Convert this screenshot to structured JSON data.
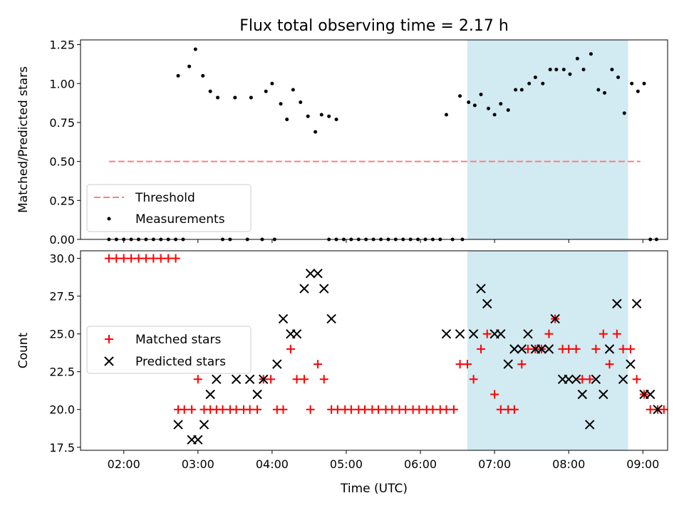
{
  "title": "Flux total observing time = 2.17 h",
  "colors": {
    "threshold": "#ff7f7f",
    "measurements": "#000000",
    "matched": "#ff0000",
    "predicted": "#000000",
    "observing_window": "#add8e6"
  },
  "chart_data": [
    {
      "type": "scatter",
      "panel": "top",
      "ylabel": "Matched/Predicted stars",
      "ylim": [
        0,
        1.28
      ],
      "yticks": [
        "0.00",
        "0.25",
        "0.50",
        "0.75",
        "1.00",
        "1.25"
      ],
      "xlim": [
        "01:25",
        "09:20"
      ],
      "grid": false,
      "legend_position": "lower-left",
      "shaded_window": [
        "06:38",
        "08:48"
      ],
      "threshold": {
        "name": "Threshold",
        "y": 0.5,
        "x": [
          "01:48",
          "08:58"
        ],
        "style": "dashed"
      },
      "series": [
        {
          "name": "Measurements",
          "points": [
            [
              "01:48",
              0
            ],
            [
              "01:54",
              0
            ],
            [
              "02:00",
              0
            ],
            [
              "02:06",
              0
            ],
            [
              "02:12",
              0
            ],
            [
              "02:18",
              0
            ],
            [
              "02:24",
              0
            ],
            [
              "02:30",
              0
            ],
            [
              "02:36",
              0
            ],
            [
              "02:42",
              0
            ],
            [
              "02:44",
              1.05
            ],
            [
              "02:48",
              0
            ],
            [
              "02:53",
              1.11
            ],
            [
              "02:58",
              1.22
            ],
            [
              "03:04",
              1.05
            ],
            [
              "03:10",
              0.95
            ],
            [
              "03:16",
              0.91
            ],
            [
              "03:20",
              0
            ],
            [
              "03:26",
              0
            ],
            [
              "03:30",
              0.91
            ],
            [
              "03:40",
              0
            ],
            [
              "03:43",
              0.91
            ],
            [
              "03:52",
              0
            ],
            [
              "03:55",
              0.95
            ],
            [
              "04:00",
              1.0
            ],
            [
              "04:02",
              0
            ],
            [
              "04:07",
              0.87
            ],
            [
              "04:12",
              0.77
            ],
            [
              "04:17",
              0.96
            ],
            [
              "04:23",
              0.88
            ],
            [
              "04:29",
              0.79
            ],
            [
              "04:35",
              0.69
            ],
            [
              "04:40",
              0.8
            ],
            [
              "04:46",
              0.79
            ],
            [
              "04:52",
              0.77
            ],
            [
              "04:46",
              0
            ],
            [
              "04:52",
              0
            ],
            [
              "04:58",
              0
            ],
            [
              "05:04",
              0
            ],
            [
              "05:10",
              0
            ],
            [
              "05:16",
              0
            ],
            [
              "05:22",
              0
            ],
            [
              "05:28",
              0
            ],
            [
              "05:34",
              0
            ],
            [
              "05:40",
              0
            ],
            [
              "05:46",
              0
            ],
            [
              "05:52",
              0
            ],
            [
              "05:58",
              0
            ],
            [
              "06:04",
              0
            ],
            [
              "06:10",
              0
            ],
            [
              "06:16",
              0
            ],
            [
              "06:21",
              0.8
            ],
            [
              "06:26",
              0
            ],
            [
              "06:32",
              0.92
            ],
            [
              "06:34",
              0
            ],
            [
              "06:39",
              0.88
            ],
            [
              "06:44",
              0.86
            ],
            [
              "06:49",
              0.93
            ],
            [
              "06:55",
              0.84
            ],
            [
              "07:00",
              0.8
            ],
            [
              "07:05",
              0.87
            ],
            [
              "07:11",
              0.83
            ],
            [
              "07:17",
              0.96
            ],
            [
              "07:22",
              0.96
            ],
            [
              "07:28",
              1.0
            ],
            [
              "07:33",
              1.04
            ],
            [
              "07:39",
              1.0
            ],
            [
              "07:45",
              1.09
            ],
            [
              "07:50",
              1.09
            ],
            [
              "07:56",
              1.09
            ],
            [
              "08:01",
              1.06
            ],
            [
              "08:07",
              1.16
            ],
            [
              "08:12",
              1.09
            ],
            [
              "08:18",
              1.19
            ],
            [
              "08:24",
              0.96
            ],
            [
              "08:29",
              0.94
            ],
            [
              "08:35",
              1.09
            ],
            [
              "08:40",
              1.04
            ],
            [
              "08:45",
              0.81
            ],
            [
              "08:51",
              1.0
            ],
            [
              "08:56",
              0.95
            ],
            [
              "09:01",
              1.0
            ],
            [
              "09:06",
              0
            ],
            [
              "09:11",
              0
            ]
          ]
        }
      ]
    },
    {
      "type": "scatter",
      "panel": "bottom",
      "xlabel": "Time (UTC)",
      "ylabel": "Count",
      "ylim": [
        17.3,
        30.5
      ],
      "yticks": [
        "17.5",
        "20.0",
        "22.5",
        "25.0",
        "27.5",
        "30.0"
      ],
      "xticks": [
        "02:00",
        "03:00",
        "04:00",
        "05:00",
        "06:00",
        "07:00",
        "08:00",
        "09:00"
      ],
      "xlim": [
        "01:25",
        "09:20"
      ],
      "grid": false,
      "legend_position": "center-left",
      "shaded_window": [
        "06:38",
        "08:48"
      ],
      "series": [
        {
          "name": "Matched stars",
          "marker": "plus",
          "points": [
            [
              "01:48",
              30
            ],
            [
              "01:54",
              30
            ],
            [
              "02:00",
              30
            ],
            [
              "02:06",
              30
            ],
            [
              "02:12",
              30
            ],
            [
              "02:18",
              30
            ],
            [
              "02:24",
              30
            ],
            [
              "02:30",
              30
            ],
            [
              "02:36",
              30
            ],
            [
              "02:42",
              30
            ],
            [
              "02:44",
              20
            ],
            [
              "02:49",
              20
            ],
            [
              "02:55",
              20
            ],
            [
              "03:00",
              22
            ],
            [
              "03:05",
              20
            ],
            [
              "03:10",
              20
            ],
            [
              "03:15",
              20
            ],
            [
              "03:20",
              20
            ],
            [
              "03:26",
              20
            ],
            [
              "03:31",
              20
            ],
            [
              "03:37",
              20
            ],
            [
              "03:42",
              20
            ],
            [
              "03:48",
              20
            ],
            [
              "03:53",
              22
            ],
            [
              "03:59",
              22
            ],
            [
              "04:04",
              20
            ],
            [
              "04:09",
              20
            ],
            [
              "04:15",
              24
            ],
            [
              "04:20",
              22
            ],
            [
              "04:26",
              22
            ],
            [
              "04:31",
              20
            ],
            [
              "04:37",
              23
            ],
            [
              "04:42",
              22
            ],
            [
              "04:48",
              20
            ],
            [
              "04:53",
              20
            ],
            [
              "04:59",
              20
            ],
            [
              "05:04",
              20
            ],
            [
              "05:10",
              20
            ],
            [
              "05:15",
              20
            ],
            [
              "05:21",
              20
            ],
            [
              "05:26",
              20
            ],
            [
              "05:32",
              20
            ],
            [
              "05:37",
              20
            ],
            [
              "05:43",
              20
            ],
            [
              "05:48",
              20
            ],
            [
              "05:54",
              20
            ],
            [
              "05:59",
              20
            ],
            [
              "06:05",
              20
            ],
            [
              "06:10",
              20
            ],
            [
              "06:16",
              20
            ],
            [
              "06:21",
              20
            ],
            [
              "06:27",
              20
            ],
            [
              "06:32",
              23
            ],
            [
              "06:38",
              23
            ],
            [
              "06:43",
              22
            ],
            [
              "06:49",
              24
            ],
            [
              "06:54",
              25
            ],
            [
              "07:00",
              21
            ],
            [
              "07:05",
              20
            ],
            [
              "07:11",
              20
            ],
            [
              "07:16",
              20
            ],
            [
              "07:22",
              23
            ],
            [
              "07:27",
              24
            ],
            [
              "07:33",
              24
            ],
            [
              "07:38",
              24
            ],
            [
              "07:44",
              25
            ],
            [
              "07:49",
              26
            ],
            [
              "07:55",
              24
            ],
            [
              "08:00",
              24
            ],
            [
              "08:06",
              24
            ],
            [
              "08:11",
              22
            ],
            [
              "08:17",
              22
            ],
            [
              "08:22",
              24
            ],
            [
              "08:28",
              25
            ],
            [
              "08:33",
              23
            ],
            [
              "08:39",
              25
            ],
            [
              "08:44",
              24
            ],
            [
              "08:50",
              24
            ],
            [
              "08:55",
              22
            ],
            [
              "09:01",
              21
            ],
            [
              "09:06",
              20
            ],
            [
              "09:12",
              20
            ],
            [
              "09:17",
              20
            ]
          ]
        },
        {
          "name": "Predicted stars",
          "marker": "x",
          "points": [
            [
              "02:44",
              19
            ],
            [
              "02:55",
              18
            ],
            [
              "03:00",
              18
            ],
            [
              "03:05",
              19
            ],
            [
              "03:10",
              21
            ],
            [
              "03:15",
              22
            ],
            [
              "03:31",
              22
            ],
            [
              "03:42",
              22
            ],
            [
              "03:48",
              21
            ],
            [
              "03:53",
              22
            ],
            [
              "04:04",
              23
            ],
            [
              "04:09",
              26
            ],
            [
              "04:15",
              25
            ],
            [
              "04:20",
              25
            ],
            [
              "04:26",
              28
            ],
            [
              "04:31",
              29
            ],
            [
              "04:37",
              29
            ],
            [
              "04:42",
              28
            ],
            [
              "04:48",
              26
            ],
            [
              "06:21",
              25
            ],
            [
              "06:32",
              25
            ],
            [
              "06:43",
              25
            ],
            [
              "06:49",
              28
            ],
            [
              "06:54",
              27
            ],
            [
              "07:00",
              25
            ],
            [
              "07:05",
              25
            ],
            [
              "07:11",
              23
            ],
            [
              "07:16",
              24
            ],
            [
              "07:22",
              24
            ],
            [
              "07:27",
              25
            ],
            [
              "07:33",
              24
            ],
            [
              "07:38",
              24
            ],
            [
              "07:44",
              24
            ],
            [
              "07:49",
              26
            ],
            [
              "07:55",
              22
            ],
            [
              "08:00",
              22
            ],
            [
              "08:06",
              22
            ],
            [
              "08:11",
              21
            ],
            [
              "08:17",
              19
            ],
            [
              "08:22",
              22
            ],
            [
              "08:28",
              21
            ],
            [
              "08:33",
              24
            ],
            [
              "08:39",
              27
            ],
            [
              "08:44",
              22
            ],
            [
              "08:50",
              23
            ],
            [
              "08:55",
              27
            ],
            [
              "09:01",
              21
            ],
            [
              "09:06",
              21
            ],
            [
              "09:12",
              20
            ]
          ]
        }
      ]
    }
  ]
}
